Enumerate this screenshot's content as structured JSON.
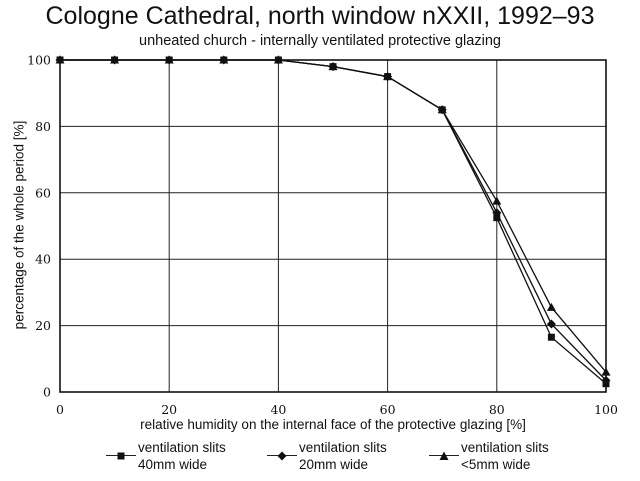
{
  "chart_data": {
    "type": "line",
    "title": "Cologne Cathedral, north window nXXII, 1992–93",
    "subtitle": "unheated church - internally ventilated protective glazing",
    "xlabel": "relative humidity on the internal face of the protective glazing [%]",
    "ylabel": "percentage of the whole period [%]",
    "xlim": [
      0,
      100
    ],
    "ylim": [
      0,
      100
    ],
    "xticks": [
      "0",
      "20",
      "40",
      "60",
      "80",
      "100"
    ],
    "yticks": [
      "0",
      "20",
      "40",
      "60",
      "80",
      "100"
    ],
    "grid": true,
    "legend_position": "bottom",
    "series": [
      {
        "name_lines": [
          "ventilation slits",
          "40mm wide"
        ],
        "marker": "square",
        "x": [
          0,
          10,
          20,
          30,
          40,
          50,
          60,
          70,
          80,
          90,
          100
        ],
        "y": [
          100,
          100,
          100,
          100,
          100,
          98,
          95,
          85,
          52.5,
          16.5,
          2.5
        ]
      },
      {
        "name_lines": [
          "ventilation slits",
          "20mm wide"
        ],
        "marker": "diamond",
        "x": [
          0,
          10,
          20,
          30,
          40,
          50,
          60,
          70,
          80,
          90,
          100
        ],
        "y": [
          100,
          100,
          100,
          100,
          100,
          98,
          95,
          85,
          54,
          20.5,
          3.5
        ]
      },
      {
        "name_lines": [
          "ventilation slits",
          "<5mm wide"
        ],
        "marker": "triangle",
        "x": [
          0,
          10,
          20,
          30,
          40,
          50,
          60,
          70,
          80,
          90,
          100
        ],
        "y": [
          100,
          100,
          100,
          100,
          100,
          98,
          95,
          85,
          57.5,
          25.5,
          6
        ]
      }
    ]
  }
}
